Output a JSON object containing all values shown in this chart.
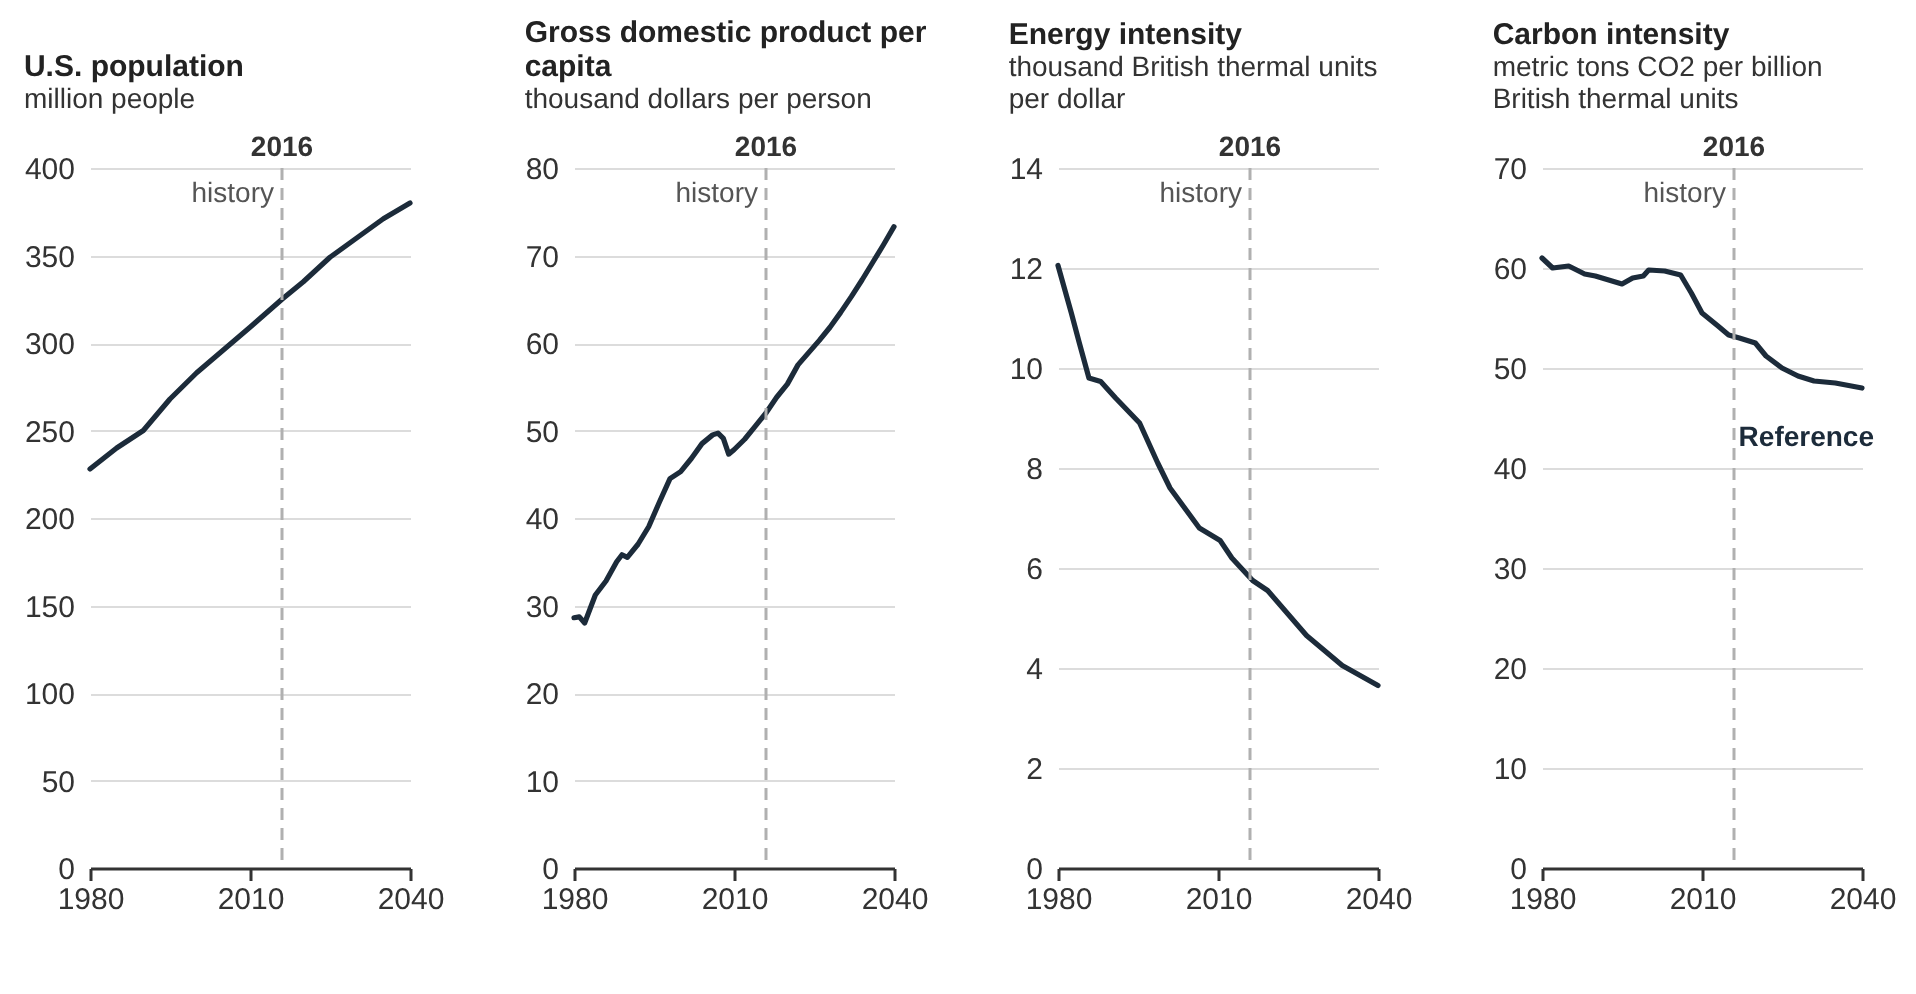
{
  "chart_data": [
    {
      "type": "line",
      "title": "U.S. population",
      "subtitle": "million people",
      "xlim": [
        1980,
        2040
      ],
      "xticks": [
        1980,
        2010,
        2040
      ],
      "ylim": [
        0,
        400
      ],
      "yticks": [
        0,
        50,
        100,
        150,
        200,
        250,
        300,
        350,
        400
      ],
      "grid": "y",
      "x": [
        1980,
        1985,
        1990,
        1995,
        2000,
        2005,
        2010,
        2016,
        2020,
        2025,
        2030,
        2035,
        2040
      ],
      "series": [
        {
          "color": "#1c2b3a",
          "values": [
            228,
            240,
            250,
            268,
            283,
            296,
            309,
            325,
            335,
            349,
            360,
            371,
            380
          ]
        }
      ],
      "ref_lines": [
        {
          "axis": "x",
          "value": 2016,
          "label": "2016",
          "color": "#b0b0b0",
          "line_style": "dashed"
        }
      ],
      "annotations": [
        "history"
      ]
    },
    {
      "type": "line",
      "title": "Gross domestic product per capita",
      "subtitle": "thousand dollars per person",
      "xlim": [
        1980,
        2040
      ],
      "xticks": [
        1980,
        2010,
        2040
      ],
      "ylim": [
        0,
        80
      ],
      "yticks": [
        0,
        10,
        20,
        30,
        40,
        50,
        60,
        70,
        80
      ],
      "grid": "y",
      "x": [
        1980,
        1981,
        1982,
        1983,
        1984,
        1986,
        1988,
        1989,
        1990,
        1992,
        1994,
        1996,
        1998,
        2000,
        2002,
        2004,
        2006,
        2007,
        2008,
        2009,
        2010,
        2012,
        2014,
        2016,
        2018,
        2020,
        2022,
        2024,
        2026,
        2028,
        2030,
        2032,
        2034,
        2036,
        2038,
        2040
      ],
      "series": [
        {
          "color": "#1c2b3a",
          "values": [
            28.6,
            28.7,
            28.0,
            29.6,
            31.2,
            32.8,
            35.0,
            35.8,
            35.5,
            37.0,
            39.0,
            41.8,
            44.5,
            45.3,
            46.8,
            48.5,
            49.5,
            49.7,
            49.1,
            47.3,
            47.8,
            49.0,
            50.5,
            52.0,
            53.8,
            55.3,
            57.5,
            58.9,
            60.3,
            61.8,
            63.5,
            65.3,
            67.2,
            69.2,
            71.2,
            73.3
          ]
        }
      ],
      "ref_lines": [
        {
          "axis": "x",
          "value": 2016,
          "label": "2016",
          "color": "#b0b0b0",
          "line_style": "dashed"
        }
      ],
      "annotations": [
        "history"
      ]
    },
    {
      "type": "line",
      "title": "Energy intensity",
      "subtitle": "thousand British thermal units per dollar",
      "xlim": [
        1980,
        2040
      ],
      "xticks": [
        1980,
        2010,
        2040
      ],
      "ylim": [
        0,
        14
      ],
      "yticks": [
        0,
        2,
        4,
        6,
        8,
        10,
        12,
        14
      ],
      "grid": "y",
      "x": [
        1980,
        1982.5,
        1984,
        1985.8,
        1988,
        1990.8,
        1995.3,
        1998.7,
        2001,
        2006.5,
        2010.4,
        2012.6,
        2016.5,
        2019.3,
        2026.6,
        2033.3,
        2040
      ],
      "series": [
        {
          "color": "#1c2b3a",
          "values": [
            12.05,
            11.1,
            10.5,
            9.8,
            9.73,
            9.4,
            8.9,
            8.1,
            7.6,
            6.8,
            6.55,
            6.2,
            5.75,
            5.55,
            4.65,
            4.05,
            3.65
          ]
        }
      ],
      "ref_lines": [
        {
          "axis": "x",
          "value": 2016,
          "label": "2016",
          "color": "#b0b0b0",
          "line_style": "dashed"
        }
      ],
      "annotations": [
        "history"
      ]
    },
    {
      "type": "line",
      "title": "Carbon intensity",
      "subtitle": "metric tons CO2 per billion British thermal units",
      "xlim": [
        1980,
        2040
      ],
      "xticks": [
        1980,
        2010,
        2040
      ],
      "ylim": [
        0,
        70
      ],
      "yticks": [
        0,
        10,
        20,
        30,
        40,
        50,
        60,
        70
      ],
      "grid": "y",
      "x": [
        1980,
        1982,
        1985,
        1988,
        1990,
        1995,
        1997,
        1999,
        2000,
        2003,
        2006,
        2008,
        2010,
        2013,
        2015,
        2017,
        2020,
        2022,
        2025,
        2028,
        2031,
        2035,
        2040
      ],
      "series": [
        {
          "name": "Reference",
          "color": "#1c2b3a",
          "values": [
            61.0,
            60.0,
            60.2,
            59.4,
            59.2,
            58.4,
            59.0,
            59.2,
            59.8,
            59.7,
            59.3,
            57.5,
            55.5,
            54.2,
            53.3,
            53.0,
            52.5,
            51.2,
            50.0,
            49.2,
            48.7,
            48.5,
            48.0
          ]
        }
      ],
      "ref_lines": [
        {
          "axis": "x",
          "value": 2016,
          "label": "2016",
          "color": "#b0b0b0",
          "line_style": "dashed"
        }
      ],
      "annotations": [
        "history"
      ]
    }
  ]
}
